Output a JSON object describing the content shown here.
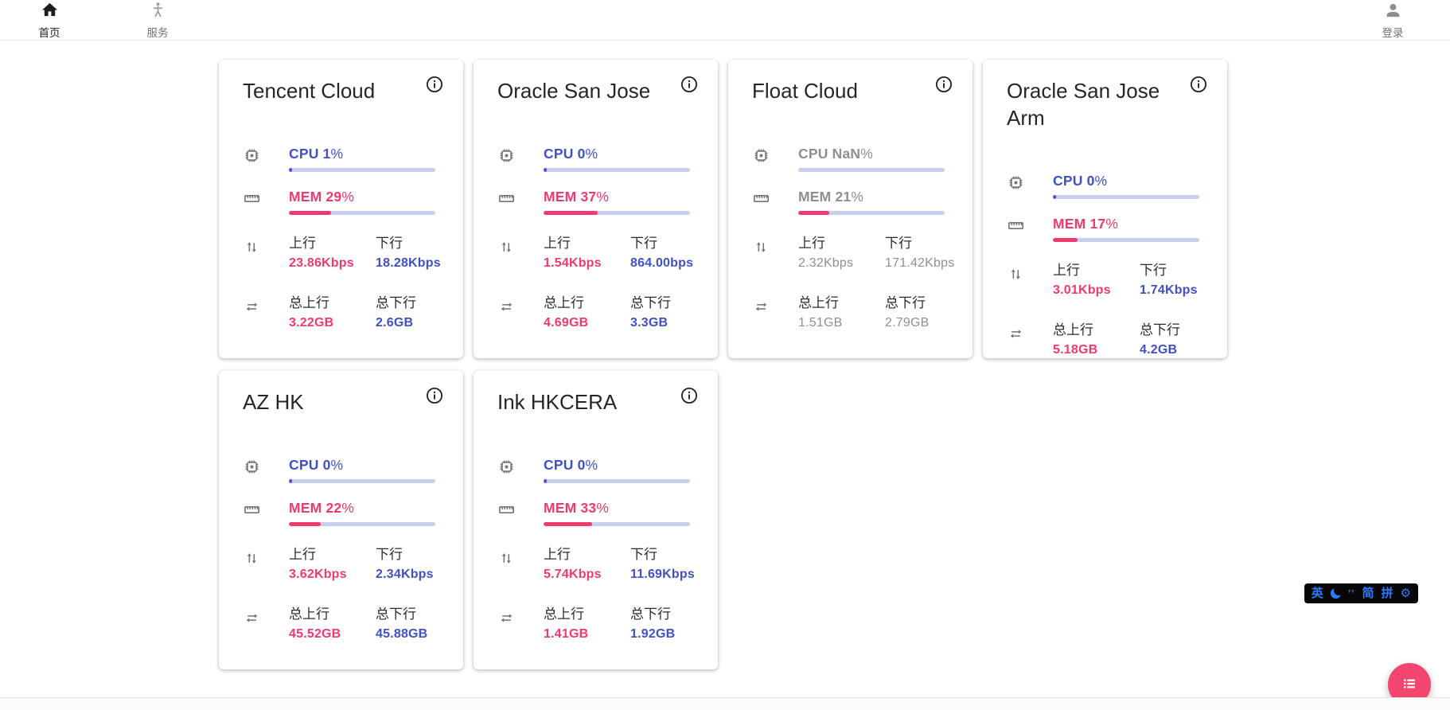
{
  "nav": {
    "home": {
      "label": "首页"
    },
    "services": {
      "label": "服务"
    },
    "login": {
      "label": "登录"
    }
  },
  "card_labels": {
    "cpu": "CPU",
    "mem": "MEM",
    "percent_suffix": "%",
    "up": "上行",
    "down": "下行",
    "total_up": "总上行",
    "total_down": "总下行"
  },
  "servers": [
    {
      "name": "Tencent Cloud",
      "cpu": "1",
      "cpu_pct": 1,
      "mem": "29",
      "mem_pct": 29,
      "up": "23.86Kbps",
      "down": "18.28Kbps",
      "total_up": "3.22GB",
      "total_down": "2.6GB",
      "offline": false
    },
    {
      "name": "Oracle San Jose",
      "cpu": "0",
      "cpu_pct": 0,
      "mem": "37",
      "mem_pct": 37,
      "up": "1.54Kbps",
      "down": "864.00bps",
      "total_up": "4.69GB",
      "total_down": "3.3GB",
      "offline": false
    },
    {
      "name": "Float Cloud",
      "cpu": "NaN",
      "cpu_pct": 0,
      "mem": "21",
      "mem_pct": 21,
      "up": "2.32Kbps",
      "down": "171.42Kbps",
      "total_up": "1.51GB",
      "total_down": "2.79GB",
      "offline": true
    },
    {
      "name": "Oracle San Jose Arm",
      "cpu": "0",
      "cpu_pct": 0,
      "mem": "17",
      "mem_pct": 17,
      "up": "3.01Kbps",
      "down": "1.74Kbps",
      "total_up": "5.18GB",
      "total_down": "4.2GB",
      "offline": false
    },
    {
      "name": "AZ HK",
      "cpu": "0",
      "cpu_pct": 0,
      "mem": "22",
      "mem_pct": 22,
      "up": "3.62Kbps",
      "down": "2.34Kbps",
      "total_up": "45.52GB",
      "total_down": "45.88GB",
      "offline": false
    },
    {
      "name": "Ink HKCERA",
      "cpu": "0",
      "cpu_pct": 0,
      "mem": "33",
      "mem_pct": 33,
      "up": "5.74Kbps",
      "down": "11.69Kbps",
      "total_up": "1.41GB",
      "total_down": "1.92GB",
      "offline": false
    }
  ],
  "ime_toolbar": {
    "lang": "英",
    "moon_icon": "crescent-moon",
    "punctuation": "’’",
    "simplified": "简",
    "pinyin": "拼",
    "gear_icon": "⚙"
  },
  "colors": {
    "accent_pink": "#ee3a6e",
    "accent_blue": "#4050c7",
    "offline_gray": "#8f8f8f",
    "bar_track": "#c9cdee",
    "fab_pink": "#f3466f",
    "ime_blue": "#2b7bff"
  }
}
